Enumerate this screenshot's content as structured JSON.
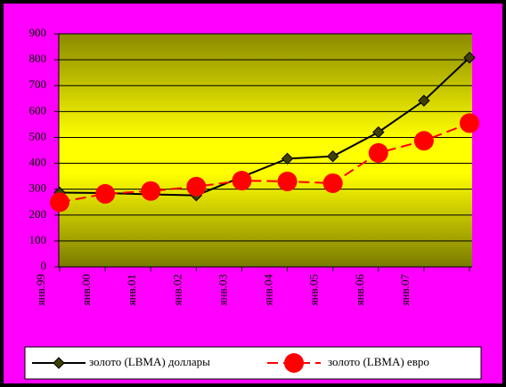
{
  "chart_data": {
    "type": "line",
    "categories": [
      "янв.99",
      "янв.00",
      "янв.01",
      "янв.02",
      "янв.03",
      "янв.04",
      "янв.05",
      "янв.06",
      "янв.07",
      null
    ],
    "series": [
      {
        "name": "золото (LBMA) доллары",
        "color": "#000000",
        "marker_color": "#404000",
        "values": [
          287,
          285,
          280,
          276,
          347,
          418,
          427,
          520,
          642,
          808
        ]
      },
      {
        "name": "золото (LBMA) евро",
        "color": "#ff0000",
        "values": [
          250,
          282,
          293,
          310,
          333,
          330,
          323,
          440,
          487,
          555
        ]
      }
    ],
    "ylim": [
      0,
      900
    ],
    "yticks": [
      0,
      100,
      200,
      300,
      400,
      500,
      600,
      700,
      800,
      900
    ],
    "grid": true
  }
}
